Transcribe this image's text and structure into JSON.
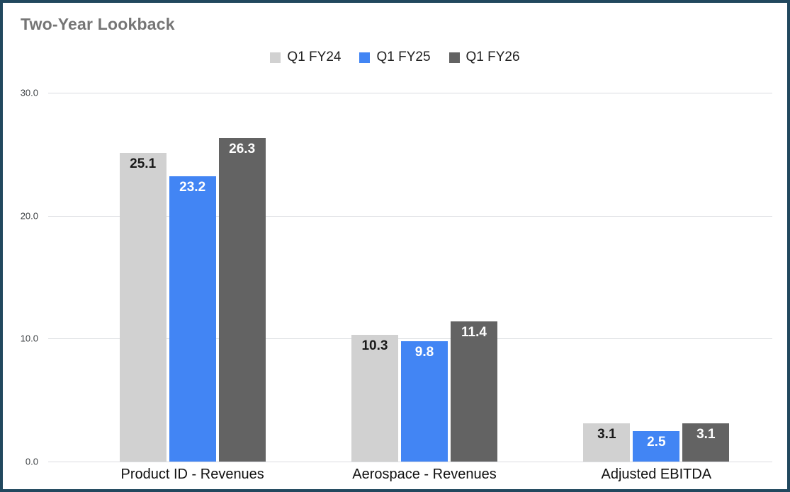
{
  "title": "Two-Year Lookback",
  "colors": {
    "frame_border": "#21485e",
    "title": "#757575",
    "gridline": "#dadce0",
    "tick_label": "#3c4043",
    "category_label": "#111111"
  },
  "chart_data": {
    "type": "bar",
    "title": "Two-Year Lookback",
    "categories": [
      "Product ID - Revenues",
      "Aerospace - Revenues",
      "Adjusted EBITDA"
    ],
    "series": [
      {
        "name": "Q1 FY24",
        "color": "#d1d1d1",
        "label_color": "#1a1a1a",
        "values": [
          25.1,
          10.3,
          3.1
        ]
      },
      {
        "name": "Q1 FY25",
        "color": "#4285f4",
        "label_color": "#ffffff",
        "values": [
          23.2,
          9.8,
          2.5
        ]
      },
      {
        "name": "Q1 FY26",
        "color": "#636363",
        "label_color": "#ffffff",
        "values": [
          26.3,
          11.4,
          3.1
        ]
      }
    ],
    "xlabel": "",
    "ylabel": "",
    "ylim": [
      0,
      30
    ],
    "yticks": [
      0,
      10,
      20,
      30
    ],
    "ytick_labels": [
      "0.0",
      "10.0",
      "20.0",
      "30.0"
    ],
    "legend_position": "top",
    "grid": true
  }
}
